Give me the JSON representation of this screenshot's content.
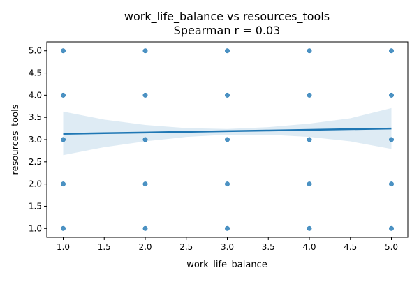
{
  "chart_data": {
    "type": "scatter",
    "title": "work_life_balance vs resources_tools",
    "subtitle": "Spearman r = 0.03",
    "xlabel": "work_life_balance",
    "ylabel": "resources_tools",
    "xlim": [
      0.8,
      5.2
    ],
    "ylim": [
      0.8,
      5.2
    ],
    "x_ticks": [
      "1.0",
      "1.5",
      "2.0",
      "2.5",
      "3.0",
      "3.5",
      "4.0",
      "4.5",
      "5.0"
    ],
    "y_ticks": [
      "1.0",
      "1.5",
      "2.0",
      "2.5",
      "3.0",
      "3.5",
      "4.0",
      "4.5",
      "5.0"
    ],
    "grid": false,
    "points": [
      {
        "x": 1,
        "y": 5
      },
      {
        "x": 1,
        "y": 4
      },
      {
        "x": 1,
        "y": 3
      },
      {
        "x": 1,
        "y": 2
      },
      {
        "x": 1,
        "y": 1
      },
      {
        "x": 2,
        "y": 5
      },
      {
        "x": 2,
        "y": 4
      },
      {
        "x": 2,
        "y": 3
      },
      {
        "x": 2,
        "y": 2
      },
      {
        "x": 2,
        "y": 1
      },
      {
        "x": 3,
        "y": 5
      },
      {
        "x": 3,
        "y": 4
      },
      {
        "x": 3,
        "y": 3
      },
      {
        "x": 3,
        "y": 2
      },
      {
        "x": 3,
        "y": 1
      },
      {
        "x": 4,
        "y": 5
      },
      {
        "x": 4,
        "y": 4
      },
      {
        "x": 4,
        "y": 3
      },
      {
        "x": 4,
        "y": 2
      },
      {
        "x": 4,
        "y": 1
      },
      {
        "x": 5,
        "y": 5
      },
      {
        "x": 5,
        "y": 4
      },
      {
        "x": 5,
        "y": 3
      },
      {
        "x": 5,
        "y": 2
      },
      {
        "x": 5,
        "y": 1
      }
    ],
    "regression": {
      "x": [
        1.0,
        1.5,
        2.0,
        2.5,
        3.0,
        3.5,
        4.0,
        4.5,
        5.0
      ],
      "fit": [
        3.13,
        3.145,
        3.16,
        3.175,
        3.19,
        3.205,
        3.22,
        3.235,
        3.25
      ],
      "ci_upper": [
        3.63,
        3.45,
        3.33,
        3.26,
        3.24,
        3.28,
        3.36,
        3.48,
        3.71
      ],
      "ci_lower": [
        2.65,
        2.83,
        2.96,
        3.06,
        3.11,
        3.11,
        3.06,
        2.96,
        2.79
      ]
    },
    "colors": {
      "point": "#1f77b4",
      "line": "#1f77b4",
      "band": "#1f77b4"
    }
  }
}
